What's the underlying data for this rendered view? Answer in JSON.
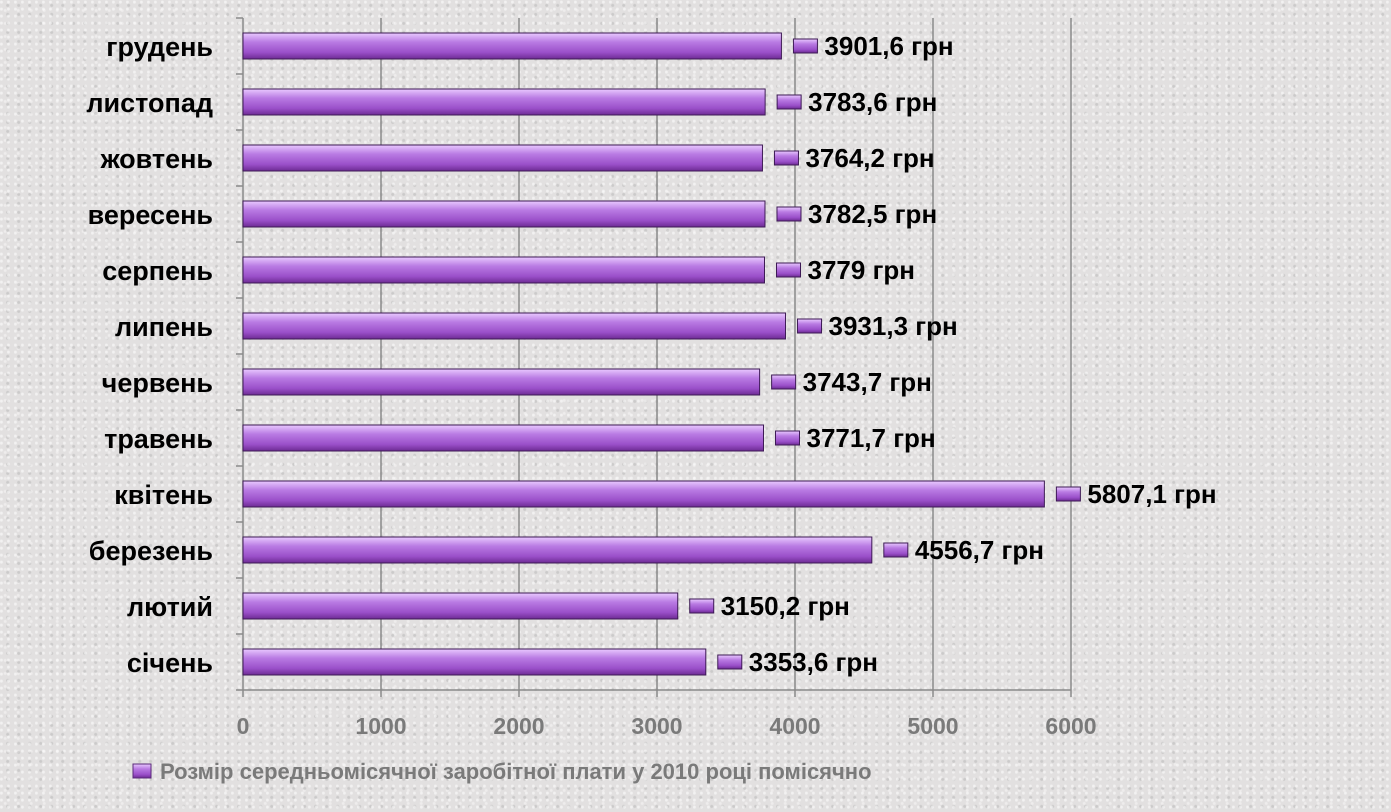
{
  "chart_data": {
    "type": "bar",
    "orientation": "horizontal",
    "categories": [
      "січень",
      "лютий",
      "березень",
      "квітень",
      "травень",
      "червень",
      "липень",
      "серпень",
      "вересень",
      "жовтень",
      "листопад",
      "грудень"
    ],
    "series": [
      {
        "name": "Розмір середньомісячної заробітної плати  у 2010 році помісячно",
        "values": [
          3353.6,
          3150.2,
          4556.7,
          5807.1,
          3771.7,
          3743.7,
          3931.3,
          3779,
          3782.5,
          3764.2,
          3783.6,
          3901.6
        ],
        "data_labels": [
          "3353,6 грн",
          "3150,2 грн",
          "4556,7 грн",
          "5807,1 грн",
          "3771,7 грн",
          "3743,7 грн",
          "3931,3 грн",
          "3779 грн",
          "3782,5 грн",
          "3764,2 грн",
          "3783,6 грн",
          "3901,6 грн"
        ],
        "color": "#9b59c9"
      }
    ],
    "xlim": [
      0,
      6000
    ],
    "xticks": [
      0,
      1000,
      2000,
      3000,
      4000,
      5000,
      6000
    ],
    "xtick_labels": [
      "0",
      "1000",
      "2000",
      "3000",
      "4000",
      "5000",
      "6000"
    ],
    "grid": "vertical",
    "legend": "bottom"
  }
}
